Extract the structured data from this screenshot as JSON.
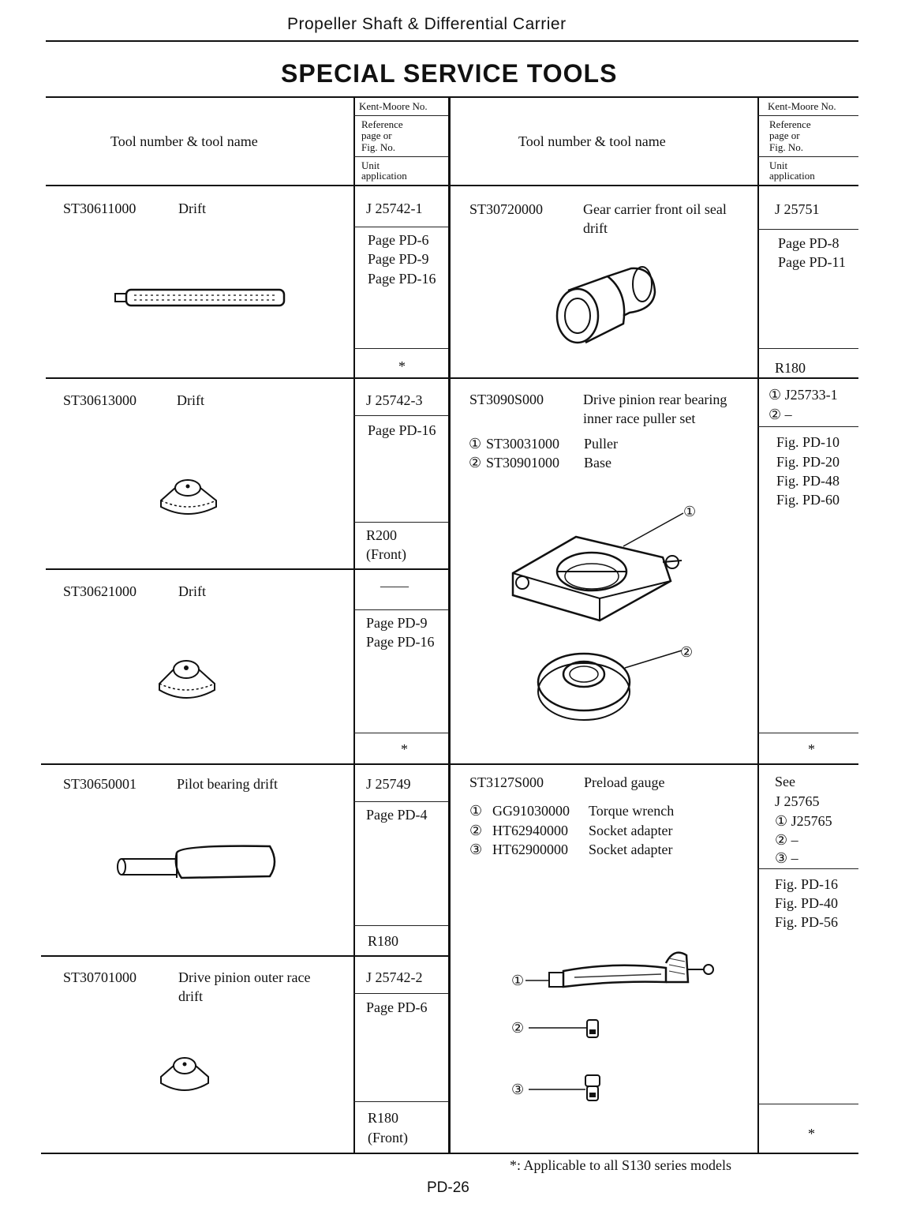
{
  "page": {
    "running_header": "Propeller Shaft & Differential Carrier",
    "title": "SPECIAL SERVICE TOOLS",
    "page_number": "PD-26",
    "footnote": "*: Applicable to all S130 series models"
  },
  "table_header": {
    "tool_col": "Tool number & tool name",
    "km_label": "Kent-Moore No.",
    "ref_label_1": "Reference",
    "ref_label_2": "page or",
    "ref_label_3": "Fig. No.",
    "unit_label_1": "Unit",
    "unit_label_2": "application"
  },
  "left_tools": [
    {
      "number": "ST30611000",
      "name": "Drift",
      "kent_moore": "J 25742-1",
      "refs": [
        "Page PD-6",
        "Page PD-9",
        "Page PD-16"
      ],
      "unit": "*",
      "icon": "long-drift-icon"
    },
    {
      "number": "ST30613000",
      "name": "Drift",
      "kent_moore": "J 25742-3",
      "refs": [
        "Page PD-16"
      ],
      "unit": "R200",
      "unit_note": "(Front)",
      "icon": "cap-drift-icon"
    },
    {
      "number": "ST30621000",
      "name": "Drift",
      "kent_moore": "——",
      "refs": [
        "Page PD-9",
        "Page PD-16"
      ],
      "unit": "*",
      "icon": "cap-drift-icon"
    },
    {
      "number": "ST30650001",
      "name": "Pilot bearing drift",
      "kent_moore": "J 25749",
      "refs": [
        "Page PD-4"
      ],
      "unit": "R180",
      "icon": "pilot-drift-icon"
    },
    {
      "number": "ST30701000",
      "name": "Drive pinion outer race",
      "name_2": "drift",
      "kent_moore": "J 25742-2",
      "refs": [
        "Page PD-6"
      ],
      "unit": "R180",
      "unit_note": "(Front)",
      "icon": "cap-drift-icon"
    }
  ],
  "right_tools": [
    {
      "number": "ST30720000",
      "name": "Gear carrier front oil seal",
      "name_2": "drift",
      "kent_moore": "J 25751",
      "refs": [
        "Page PD-8",
        "Page PD-11"
      ],
      "unit": "R180",
      "icon": "oil-seal-drift-icon"
    },
    {
      "number": "ST3090S000",
      "name": "Drive pinion rear bearing",
      "name_2": "inner race puller set",
      "parts": [
        {
          "mark": "①",
          "number": "ST30031000",
          "name": "Puller"
        },
        {
          "mark": "②",
          "number": "ST30901000",
          "name": "Base"
        }
      ],
      "kent_moore_lines": [
        "① J25733-1",
        "②    –"
      ],
      "refs": [
        "Fig. PD-10",
        "Fig. PD-20",
        "Fig. PD-48",
        "Fig. PD-60"
      ],
      "unit": "*",
      "icon": "puller-set-icon",
      "callouts": [
        "①",
        "②"
      ]
    },
    {
      "number": "ST3127S000",
      "name": "Preload gauge",
      "parts": [
        {
          "mark": "①",
          "number": "GG91030000",
          "name": "Torque wrench"
        },
        {
          "mark": "②",
          "number": "HT62940000",
          "name": "Socket adapter"
        },
        {
          "mark": "③",
          "number": "HT62900000",
          "name": "Socket adapter"
        }
      ],
      "kent_moore_lines": [
        "See",
        "J 25765",
        "① J25765",
        "②    –",
        "③    –"
      ],
      "refs": [
        "Fig. PD-16",
        "Fig. PD-40",
        "Fig. PD-56"
      ],
      "unit": "*",
      "icon": "preload-gauge-icon",
      "callouts": [
        "①",
        "②",
        "③"
      ]
    }
  ]
}
